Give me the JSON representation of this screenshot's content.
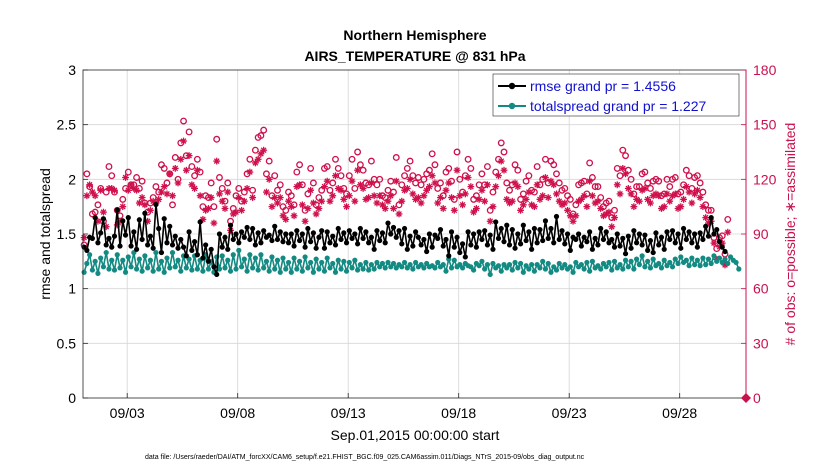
{
  "chart_data": {
    "type": "line",
    "title": "Northern Hemisphere",
    "subtitle": "AIRS_TEMPERATURE @ 831 hPa",
    "xlabel": "Sep.01,2015 00:00:00 start",
    "ylabel": "rmse and totalspread",
    "ylabel_right": "# of obs: o=possible; ∗=assimilated",
    "footnote": "data file: /Users/raeder/DAI/ATM_forcXX/CAM6_setup/f.e21.FHIST_BGC.f09_025.CAM6assim.011/Diags_NTrS_2015-09/obs_diag_output.nc",
    "xlim": [
      1,
      31
    ],
    "ylim": [
      0,
      3
    ],
    "ylim_right": [
      0,
      180
    ],
    "y_ticks": [
      "0",
      "0.5",
      "1",
      "1.5",
      "2",
      "2.5",
      "3"
    ],
    "y_ticks_right": [
      "0",
      "30",
      "60",
      "90",
      "120",
      "150",
      "180"
    ],
    "x_ticks": [
      {
        "day": 3,
        "label": "09/03"
      },
      {
        "day": 8,
        "label": "09/08"
      },
      {
        "day": 13,
        "label": "09/13"
      },
      {
        "day": 18,
        "label": "09/18"
      },
      {
        "day": 23,
        "label": "09/23"
      },
      {
        "day": 28,
        "label": "09/28"
      }
    ],
    "grid": true,
    "legend_location": "top-right",
    "colors": {
      "rmse": "#000000",
      "spread": "#138a82",
      "obs": "#d0104c",
      "grid": "#d6d6d6"
    },
    "series": [
      {
        "name": "rmse grand pr = 1.4556",
        "key": "rmse",
        "marker": "filled-circle",
        "values": [
          1.38,
          1.35,
          1.47,
          1.46,
          1.65,
          1.42,
          1.51,
          1.64,
          1.4,
          1.46,
          1.38,
          1.48,
          1.72,
          1.39,
          1.62,
          1.49,
          1.65,
          1.39,
          1.52,
          1.36,
          1.63,
          1.45,
          1.69,
          1.4,
          1.48,
          1.37,
          1.77,
          1.55,
          1.33,
          1.64,
          1.42,
          1.57,
          1.4,
          1.48,
          1.37,
          1.45,
          1.38,
          1.3,
          1.52,
          1.35,
          1.43,
          1.31,
          1.61,
          1.28,
          1.4,
          1.25,
          1.36,
          1.2,
          1.13,
          1.5,
          1.38,
          1.47,
          1.36,
          1.58,
          1.45,
          1.5,
          1.42,
          1.52,
          1.47,
          1.56,
          1.45,
          1.55,
          1.4,
          1.51,
          1.42,
          1.53,
          1.47,
          1.49,
          1.44,
          1.57,
          1.45,
          1.52,
          1.43,
          1.5,
          1.42,
          1.5,
          1.39,
          1.53,
          1.44,
          1.5,
          1.38,
          1.55,
          1.43,
          1.51,
          1.37,
          1.47,
          1.53,
          1.37,
          1.52,
          1.42,
          1.48,
          1.4,
          1.55,
          1.45,
          1.51,
          1.42,
          1.53,
          1.46,
          1.5,
          1.41,
          1.55,
          1.46,
          1.52,
          1.42,
          1.47,
          1.36,
          1.53,
          1.44,
          1.51,
          1.42,
          1.6,
          1.5,
          1.56,
          1.47,
          1.53,
          1.41,
          1.55,
          1.36,
          1.48,
          1.39,
          1.52,
          1.47,
          1.4,
          1.45,
          1.34,
          1.5,
          1.38,
          1.49,
          1.46,
          1.54,
          1.39,
          1.45,
          1.3,
          1.52,
          1.38,
          1.47,
          1.33,
          1.41,
          1.29,
          1.52,
          1.4,
          1.5,
          1.38,
          1.52,
          1.45,
          1.53,
          1.4,
          1.49,
          1.36,
          1.61,
          1.46,
          1.55,
          1.43,
          1.58,
          1.4,
          1.54,
          1.37,
          1.5,
          1.41,
          1.58,
          1.44,
          1.52,
          1.36,
          1.55,
          1.42,
          1.54,
          1.44,
          1.62,
          1.46,
          1.55,
          1.42,
          1.66,
          1.45,
          1.53,
          1.41,
          1.5,
          1.35,
          1.47,
          1.45,
          1.5,
          1.39,
          1.47,
          1.43,
          1.52,
          1.36,
          1.46,
          1.4,
          1.55,
          1.45,
          1.52,
          1.42,
          1.45,
          1.38,
          1.5,
          1.39,
          1.46,
          1.32,
          1.48,
          1.37,
          1.53,
          1.42,
          1.5,
          1.4,
          1.49,
          1.35,
          1.44,
          1.33,
          1.51,
          1.4,
          1.47,
          1.36,
          1.52,
          1.45,
          1.53,
          1.42,
          1.5,
          1.37,
          1.55,
          1.45,
          1.52,
          1.42,
          1.5,
          1.38,
          1.51,
          1.45,
          1.57,
          1.48,
          1.65,
          1.5,
          1.54,
          1.43,
          1.38,
          1.34
        ]
      },
      {
        "name": "totalspread grand pr = 1.227",
        "key": "spread",
        "marker": "filled-circle",
        "values": [
          1.15,
          1.23,
          1.31,
          1.17,
          1.25,
          1.14,
          1.28,
          1.2,
          1.33,
          1.18,
          1.26,
          1.17,
          1.31,
          1.19,
          1.26,
          1.15,
          1.29,
          1.2,
          1.33,
          1.18,
          1.27,
          1.16,
          1.3,
          1.19,
          1.26,
          1.16,
          1.33,
          1.18,
          1.25,
          1.15,
          1.28,
          1.19,
          1.33,
          1.2,
          1.26,
          1.16,
          1.3,
          1.19,
          1.27,
          1.17,
          1.3,
          1.18,
          1.26,
          1.16,
          1.31,
          1.18,
          1.25,
          1.15,
          1.29,
          1.18,
          1.3,
          1.19,
          1.26,
          1.16,
          1.31,
          1.18,
          1.35,
          1.2,
          1.27,
          1.16,
          1.31,
          1.19,
          1.28,
          1.17,
          1.31,
          1.19,
          1.25,
          1.16,
          1.29,
          1.18,
          1.26,
          1.15,
          1.28,
          1.18,
          1.24,
          1.15,
          1.28,
          1.18,
          1.25,
          1.16,
          1.29,
          1.19,
          1.24,
          1.15,
          1.27,
          1.18,
          1.24,
          1.16,
          1.28,
          1.19,
          1.23,
          1.15,
          1.26,
          1.18,
          1.25,
          1.16,
          1.24,
          1.19,
          1.26,
          1.17,
          1.22,
          1.18,
          1.24,
          1.17,
          1.22,
          1.18,
          1.24,
          1.2,
          1.23,
          1.19,
          1.24,
          1.2,
          1.23,
          1.19,
          1.22,
          1.2,
          1.24,
          1.19,
          1.22,
          1.18,
          1.24,
          1.2,
          1.22,
          1.19,
          1.23,
          1.2,
          1.21,
          1.19,
          1.24,
          1.2,
          1.22,
          1.16,
          1.27,
          1.19,
          1.26,
          1.2,
          1.22,
          1.19,
          1.23,
          1.21,
          1.2,
          1.17,
          1.23,
          1.21,
          1.25,
          1.18,
          1.22,
          1.13,
          1.23,
          1.19,
          1.21,
          1.16,
          1.22,
          1.19,
          1.22,
          1.17,
          1.24,
          1.19,
          1.23,
          1.15,
          1.21,
          1.18,
          1.22,
          1.16,
          1.22,
          1.19,
          1.25,
          1.18,
          1.23,
          1.15,
          1.2,
          1.17,
          1.23,
          1.19,
          1.22,
          1.18,
          1.2,
          1.15,
          1.24,
          1.2,
          1.22,
          1.18,
          1.24,
          1.16,
          1.25,
          1.19,
          1.21,
          1.18,
          1.23,
          1.2,
          1.24,
          1.17,
          1.25,
          1.19,
          1.22,
          1.18,
          1.26,
          1.2,
          1.25,
          1.18,
          1.27,
          1.22,
          1.3,
          1.2,
          1.25,
          1.19,
          1.27,
          1.21,
          1.23,
          1.19,
          1.26,
          1.21,
          1.24,
          1.2,
          1.27,
          1.23,
          1.29,
          1.24,
          1.26,
          1.21,
          1.28,
          1.22,
          1.26,
          1.21,
          1.28,
          1.22,
          1.27,
          1.23,
          1.3,
          1.25,
          1.28,
          1.24,
          1.27,
          1.23,
          1.29,
          1.26,
          1.24,
          1.18
        ]
      },
      {
        "name": "obs possible",
        "key": "possible",
        "marker": "open-circle",
        "axis": "right",
        "values": [
          84,
          123,
          116,
          101,
          102,
          106,
          115,
          97,
          113,
          127,
          122,
          113,
          103,
          100,
          109,
          115,
          124,
          117,
          117,
          121,
          115,
          119,
          107,
          102,
          107,
          110,
          116,
          113,
          128,
          126,
          118,
          123,
          106,
          132,
          120,
          140,
          152,
          133,
          146,
          127,
          122,
          131,
          124,
          105,
          111,
          110,
          118,
          105,
          142,
          121,
          115,
          108,
          118,
          97,
          104,
          111,
          115,
          108,
          113,
          123,
          131,
          114,
          136,
          143,
          144,
          147,
          123,
          130,
          111,
          122,
          114,
          117,
          105,
          103,
          113,
          111,
          106,
          124,
          128,
          117,
          103,
          112,
          126,
          118,
          106,
          110,
          114,
          126,
          127,
          114,
          118,
          131,
          126,
          122,
          115,
          112,
          122,
          131,
          115,
          135,
          128,
          125,
          118,
          117,
          130,
          120,
          117,
          120,
          111,
          110,
          114,
          119,
          113,
          132,
          106,
          117,
          122,
          126,
          130,
          122,
          118,
          121,
          117,
          120,
          123,
          125,
          134,
          128,
          115,
          118,
          111,
          124,
          126,
          119,
          109,
          135,
          120,
          113,
          122,
          131,
          126,
          109,
          111,
          117,
          123,
          117,
          127,
          103,
          113,
          124,
          131,
          140,
          135,
          118,
          114,
          117,
          128,
          125,
          109,
          112,
          119,
          122,
          114,
          113,
          127,
          117,
          120,
          131,
          118,
          130,
          128,
          123,
          118,
          114,
          115,
          111,
          109,
          101,
          106,
          117,
          118,
          119,
          112,
          129,
          121,
          116,
          116,
          110,
          105,
          107,
          108,
          99,
          103,
          126,
          122,
          136,
          133,
          125,
          120,
          112,
          116,
          116,
          123,
          124,
          118,
          115,
          119,
          120,
          119,
          111,
          112,
          120,
          116,
          120,
          121,
          112,
          113,
          117,
          125,
          122,
          115,
          121,
          122,
          118,
          113,
          106,
          103,
          103,
          88,
          82,
          88,
          89,
          79,
          98
        ]
      },
      {
        "name": "obs assimilated",
        "key": "assimilated",
        "marker": "asterisk",
        "axis": "right",
        "values": [
          88,
          111,
          117,
          113,
          111,
          97,
          114,
          102,
          94,
          115,
          115,
          114,
          95,
          97,
          105,
          121,
          114,
          117,
          115,
          114,
          107,
          110,
          106,
          97,
          103,
          108,
          107,
          109,
          113,
          116,
          112,
          123,
          111,
          126,
          118,
          131,
          141,
          125,
          133,
          117,
          115,
          125,
          111,
          98,
          103,
          104,
          110,
          96,
          130,
          112,
          108,
          104,
          113,
          92,
          101,
          102,
          110,
          103,
          108,
          115,
          124,
          110,
          129,
          131,
          134,
          136,
          113,
          120,
          105,
          110,
          107,
          110,
          100,
          98,
          108,
          105,
          100,
          116,
          117,
          106,
          97,
          104,
          114,
          107,
          101,
          104,
          108,
          116,
          119,
          108,
          111,
          122,
          115,
          114,
          109,
          105,
          111,
          119,
          108,
          125,
          117,
          115,
          109,
          110,
          118,
          111,
          107,
          111,
          106,
          104,
          108,
          111,
          104,
          119,
          101,
          108,
          114,
          115,
          120,
          112,
          109,
          110,
          107,
          111,
          114,
          116,
          122,
          118,
          107,
          110,
          104,
          114,
          118,
          110,
          103,
          125,
          111,
          106,
          112,
          121,
          116,
          102,
          104,
          109,
          114,
          108,
          117,
          97,
          105,
          116,
          122,
          130,
          125,
          109,
          107,
          108,
          118,
          116,
          103,
          106,
          109,
          113,
          106,
          105,
          117,
          109,
          111,
          121,
          110,
          119,
          117,
          112,
          108,
          106,
          107,
          103,
          100,
          97,
          100,
          108,
          109,
          111,
          105,
          119,
          111,
          107,
          108,
          104,
          100,
          101,
          102,
          94,
          99,
          117,
          112,
          126,
          123,
          115,
          112,
          105,
          109,
          108,
          114,
          115,
          109,
          107,
          111,
          112,
          111,
          104,
          105,
          112,
          108,
          111,
          112,
          104,
          105,
          109,
          116,
          113,
          107,
          112,
          114,
          110,
          105,
          99,
          96,
          97,
          85,
          76,
          83,
          85,
          73,
          91
        ]
      }
    ]
  }
}
